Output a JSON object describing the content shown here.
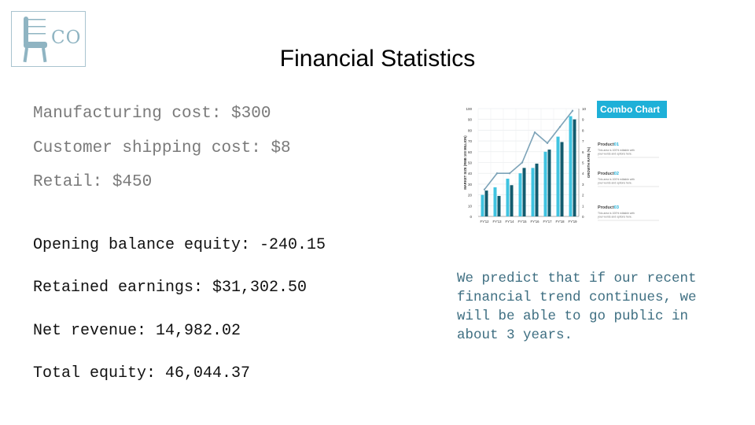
{
  "logo": {
    "text": "CO",
    "icon": "chair-icon"
  },
  "title": "Financial Statistics",
  "costs": {
    "manufacturing": "Manufacturing cost: $300",
    "shipping": "Customer shipping cost: $8",
    "retail": "Retail: $450"
  },
  "equity": {
    "opening": "Opening balance equity: -240.15",
    "retained": "Retained earnings: $31,302.50",
    "net_revenue": "Net revenue: 14,982.02",
    "total": "Total equity: 46,044.37"
  },
  "prediction": "We predict that if our recent financial trend continues, we will be able to go public in about 3 years.",
  "colors": {
    "accent": "#1eb0d8",
    "bar_light": "#3fc3e0",
    "bar_dark": "#125b6e",
    "line": "#7da3b8",
    "logo": "#8fb4c2"
  },
  "chart_data": {
    "type": "bar",
    "title": "Combo Chart",
    "ylabel": "MARKET SIZE (RMB 100 MILLION)",
    "y2label": "GROWTH RATE (%)",
    "categories": [
      "FY'12",
      "FY'13",
      "FY'14",
      "FY'15",
      "FY'16",
      "FY'17",
      "FY'18",
      "FY'19"
    ],
    "ylim": [
      0,
      100
    ],
    "y2lim": [
      0,
      10
    ],
    "yticks": [
      "100",
      "90",
      "80",
      "70",
      "60",
      "50",
      "40",
      "30",
      "20",
      "10",
      "0"
    ],
    "y2ticks": [
      "10",
      "9",
      "8",
      "7",
      "6",
      "5",
      "4",
      "3",
      "2",
      "1",
      "0"
    ],
    "series": [
      {
        "name": "Product 01",
        "type": "bar",
        "values": [
          20,
          27,
          35,
          40,
          45,
          60,
          74,
          93
        ]
      },
      {
        "name": "Product 02",
        "type": "bar",
        "values": [
          24,
          19,
          29,
          45,
          49,
          62,
          69,
          90
        ]
      },
      {
        "name": "Product 03",
        "type": "line",
        "values": [
          2.5,
          4.0,
          4.0,
          5.0,
          7.8,
          6.8,
          8.3,
          9.8
        ]
      }
    ],
    "legend": [
      {
        "label": "Product",
        "suffix": "01",
        "desc": "This area is 100% editable with your words and options here."
      },
      {
        "label": "Product",
        "suffix": "02",
        "desc": "This area is 100% editable with your words and options here."
      },
      {
        "label": "Product",
        "suffix": "03",
        "desc": "This area is 100% editable with your words and options here."
      }
    ]
  }
}
